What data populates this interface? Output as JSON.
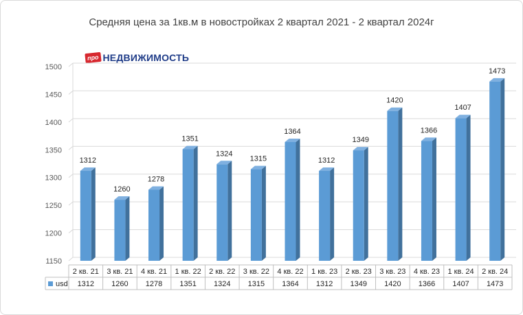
{
  "chart_data": {
    "type": "bar",
    "title": "Средняя цена за 1кв.м в новостройках 2 квартал 2021 - 2 квартал 2024г",
    "categories": [
      "2 кв. 21",
      "3 кв. 21",
      "4 кв. 21",
      "1 кв. 22",
      "2 кв. 22",
      "3 кв. 22",
      "4 кв. 22",
      "1 кв. 23",
      "2 кв. 23",
      "3 кв. 23",
      "4 кв. 23",
      "1 кв. 24",
      "2 кв. 24"
    ],
    "series": [
      {
        "name": "usd",
        "values": [
          1312,
          1260,
          1278,
          1351,
          1324,
          1315,
          1364,
          1312,
          1349,
          1420,
          1366,
          1407,
          1473
        ],
        "color": "#5b9bd5"
      }
    ],
    "ylim": [
      1150,
      1500
    ],
    "yticks": [
      1150,
      1200,
      1250,
      1300,
      1350,
      1400,
      1450,
      1500
    ],
    "grid": true,
    "data_table": true
  },
  "logo": {
    "badge": "про",
    "text": "НЕДВИЖИМОСТЬ"
  }
}
